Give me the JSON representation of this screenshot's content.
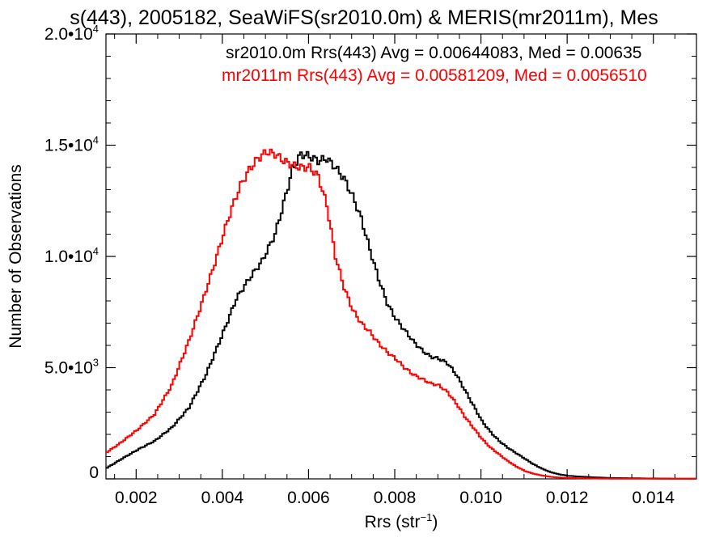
{
  "chart_data": {
    "type": "line",
    "title": "s(443), 2005182, SeaWiFS(sr2010.0m) & MERIS(mr2011m), Mes",
    "xlabel": "Rrs (str",
    "xlabel_sup": "−1",
    "xlabel_end": ")",
    "ylabel": "Number of Observations",
    "xlim": [
      0.0013,
      0.015
    ],
    "ylim": [
      0,
      20000
    ],
    "x_ticks": [
      {
        "value": 0.002,
        "label": "0.002"
      },
      {
        "value": 0.004,
        "label": "0.004"
      },
      {
        "value": 0.006,
        "label": "0.006"
      },
      {
        "value": 0.008,
        "label": "0.008"
      },
      {
        "value": 0.01,
        "label": "0.010"
      },
      {
        "value": 0.012,
        "label": "0.012"
      },
      {
        "value": 0.014,
        "label": "0.014"
      }
    ],
    "y_ticks": [
      {
        "value": 0,
        "label": "0",
        "sup": ""
      },
      {
        "value": 5000,
        "label": "5.0•10",
        "sup": "3"
      },
      {
        "value": 10000,
        "label": "1.0•10",
        "sup": "4"
      },
      {
        "value": 15000,
        "label": "1.5•10",
        "sup": "4"
      },
      {
        "value": 20000,
        "label": "2.0•10",
        "sup": "4"
      }
    ],
    "annotations": [
      {
        "text": "sr2010.0m Rrs(443) Avg = 0.00644083, Med = 0.00635",
        "color": "#000000"
      },
      {
        "text": "mr2011m Rrs(443) Avg = 0.00581209, Med = 0.0056510",
        "color": "#ff0000"
      }
    ],
    "series": [
      {
        "color": "#000000",
        "x": [
          0.0013,
          0.0016,
          0.002,
          0.0024,
          0.0028,
          0.0032,
          0.0036,
          0.004,
          0.0043,
          0.0046,
          0.0049,
          0.0052,
          0.0054,
          0.0056,
          0.0058,
          0.006,
          0.0062,
          0.0064,
          0.0066,
          0.0068,
          0.007,
          0.0072,
          0.0074,
          0.0076,
          0.0078,
          0.008,
          0.0082,
          0.0084,
          0.0086,
          0.0088,
          0.009,
          0.0092,
          0.0094,
          0.0096,
          0.0098,
          0.01,
          0.0102,
          0.0104,
          0.0106,
          0.0108,
          0.011,
          0.0112,
          0.0114,
          0.0116,
          0.0118,
          0.012,
          0.0122,
          0.0124,
          0.0126,
          0.0128,
          0.013,
          0.0134,
          0.0138,
          0.0142,
          0.0146,
          0.015
        ],
        "y": [
          500,
          850,
          1300,
          1700,
          2300,
          3200,
          4700,
          6600,
          8100,
          9000,
          9800,
          11000,
          12400,
          13900,
          14600,
          14500,
          14300,
          14400,
          14000,
          13500,
          12700,
          11700,
          10300,
          9000,
          7900,
          7200,
          6700,
          6200,
          5800,
          5500,
          5400,
          5200,
          4700,
          4000,
          3300,
          2600,
          2100,
          1700,
          1400,
          1150,
          900,
          650,
          450,
          300,
          200,
          140,
          110,
          90,
          70,
          55,
          40,
          30,
          20,
          15,
          10,
          8
        ]
      },
      {
        "color": "#ff0000",
        "x": [
          0.0013,
          0.0016,
          0.002,
          0.0024,
          0.0028,
          0.0032,
          0.0035,
          0.0038,
          0.004,
          0.0042,
          0.0044,
          0.0046,
          0.0048,
          0.005,
          0.0052,
          0.0054,
          0.0056,
          0.0058,
          0.006,
          0.0062,
          0.0064,
          0.0066,
          0.0068,
          0.007,
          0.0072,
          0.0074,
          0.0076,
          0.0078,
          0.008,
          0.0082,
          0.0084,
          0.0086,
          0.0088,
          0.009,
          0.0092,
          0.0094,
          0.0096,
          0.0098,
          0.01,
          0.0102,
          0.0104,
          0.0106,
          0.0108,
          0.011,
          0.0112,
          0.0114,
          0.0116,
          0.0118,
          0.012,
          0.0124,
          0.0128,
          0.0132,
          0.0136,
          0.014,
          0.015
        ],
        "y": [
          1200,
          1600,
          2200,
          2900,
          4200,
          6200,
          7900,
          9700,
          11000,
          12200,
          13200,
          13900,
          14400,
          14700,
          14600,
          14300,
          14100,
          14000,
          14000,
          13600,
          12300,
          10000,
          8600,
          7600,
          7000,
          6600,
          6100,
          5700,
          5400,
          5000,
          4700,
          4500,
          4300,
          4200,
          3900,
          3400,
          2800,
          2300,
          1800,
          1400,
          1100,
          800,
          550,
          350,
          230,
          150,
          90,
          60,
          40,
          25,
          15,
          10,
          8,
          5,
          3
        ]
      }
    ]
  }
}
